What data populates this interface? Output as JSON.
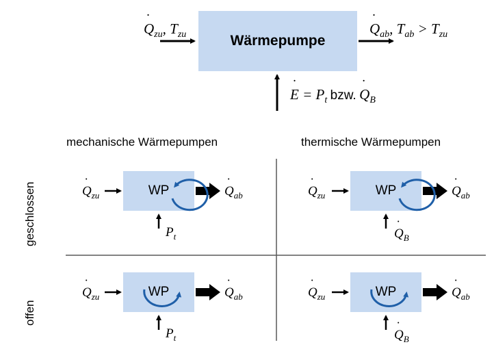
{
  "top": {
    "box_label": "Wärmepumpe",
    "input_label": "Q̇zu, Tzu",
    "output_label": "Q̇ab, Tab > Tzu",
    "energy_label_math": "Ė = Pt",
    "energy_label_word": "bzw.",
    "energy_label_alt": "Q̇B"
  },
  "columns": [
    "mechanische Wärmepumpen",
    "thermische Wärmepumpen"
  ],
  "rows": [
    "geschlossen",
    "offen"
  ],
  "cells": {
    "wp_label": "WP",
    "in_label": "Q̇zu",
    "out_label": "Q̇ab",
    "mech_drive": "Pt",
    "therm_drive": "Q̇B"
  },
  "colors": {
    "box_fill": "#c6d9f1",
    "cycle_arrow": "#1f5fa8",
    "divider": "#595959"
  }
}
